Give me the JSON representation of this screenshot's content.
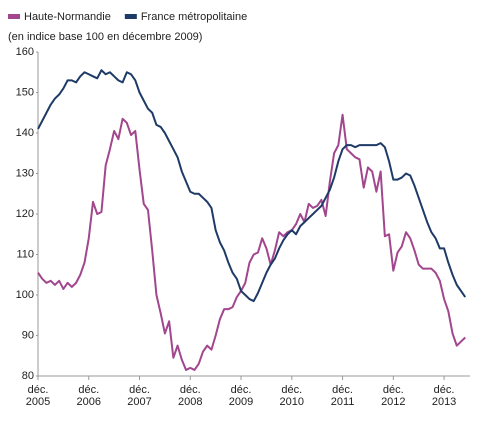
{
  "chart_data": {
    "type": "line",
    "subtitle": "(en indice base 100 en décembre 2009)",
    "categories": [
      "déc. 2005",
      null,
      null,
      null,
      null,
      null,
      null,
      null,
      null,
      null,
      null,
      null,
      "déc. 2006",
      null,
      null,
      null,
      null,
      null,
      null,
      null,
      null,
      null,
      null,
      null,
      "déc. 2007",
      null,
      null,
      null,
      null,
      null,
      null,
      null,
      null,
      null,
      null,
      null,
      "déc. 2008",
      null,
      null,
      null,
      null,
      null,
      null,
      null,
      null,
      null,
      null,
      null,
      "déc. 2009",
      null,
      null,
      null,
      null,
      null,
      null,
      null,
      null,
      null,
      null,
      null,
      "déc. 2010",
      null,
      null,
      null,
      null,
      null,
      null,
      null,
      null,
      null,
      null,
      null,
      "déc. 2011",
      null,
      null,
      null,
      null,
      null,
      null,
      null,
      null,
      null,
      null,
      null,
      "déc. 2012",
      null,
      null,
      null,
      null,
      null,
      null,
      null,
      null,
      null,
      null,
      null,
      "déc. 2013",
      null,
      null,
      null,
      null,
      null
    ],
    "series": [
      {
        "name": "Haute-Normandie",
        "color": "#a2468d",
        "values": [
          105.5,
          104,
          103,
          103.5,
          102.5,
          103.5,
          101.5,
          103,
          102,
          103,
          105,
          108,
          114,
          123,
          120,
          120.5,
          132,
          136,
          140.5,
          138.5,
          143.5,
          142.5,
          139.5,
          140.5,
          131,
          122.5,
          121,
          111,
          100,
          95.5,
          90.5,
          93.5,
          84.5,
          87.5,
          84,
          81.5,
          82,
          81.5,
          83,
          86,
          87.5,
          86.5,
          90,
          94,
          96.5,
          96.5,
          97,
          99.5,
          101,
          103,
          108,
          110,
          110.5,
          114,
          111.5,
          107.5,
          111,
          115.5,
          114.5,
          115.5,
          116,
          117.5,
          120,
          118,
          122.5,
          121.5,
          122,
          123.5,
          119.5,
          128,
          135,
          137,
          144.5,
          136,
          135,
          134,
          133.5,
          126.5,
          131.5,
          130.5,
          125.5,
          130.5,
          114.5,
          115,
          106,
          110.5,
          112,
          115.5,
          114,
          111,
          107.5,
          106.5,
          106.5,
          106.5,
          105.5,
          103.5,
          99,
          96,
          90.5,
          87.5,
          88.5,
          89.5
        ]
      },
      {
        "name": "France métropolitaine",
        "color": "#1e3a66",
        "values": [
          141,
          143,
          145,
          147,
          148.5,
          149.5,
          151,
          153,
          153,
          152.5,
          154,
          155,
          154.5,
          154,
          153.5,
          155.5,
          154.5,
          155,
          154,
          153,
          152.5,
          155,
          154.5,
          153,
          150,
          148,
          146,
          145,
          142,
          141.5,
          140,
          138,
          136,
          134,
          130.5,
          128,
          125.5,
          125,
          125,
          124,
          123,
          121.5,
          116,
          113,
          111,
          108,
          105.5,
          104,
          101,
          100,
          99,
          98.5,
          100.5,
          103,
          105.5,
          107.5,
          109,
          111.5,
          113.5,
          115,
          116,
          115,
          117,
          118,
          119,
          120,
          121,
          122,
          124,
          126,
          129,
          133,
          136,
          137,
          137,
          136.5,
          137,
          137,
          137,
          137,
          137,
          137.5,
          136.5,
          133,
          128.5,
          128.5,
          129,
          130,
          129.5,
          127,
          124,
          121,
          118,
          115.5,
          114,
          111.5,
          111.5,
          108,
          105,
          102.5,
          101,
          99.5
        ]
      }
    ],
    "ylim": [
      80,
      160
    ],
    "yticks": [
      80,
      90,
      100,
      110,
      120,
      130,
      140,
      150,
      160
    ],
    "grid": false,
    "legend": "top"
  }
}
